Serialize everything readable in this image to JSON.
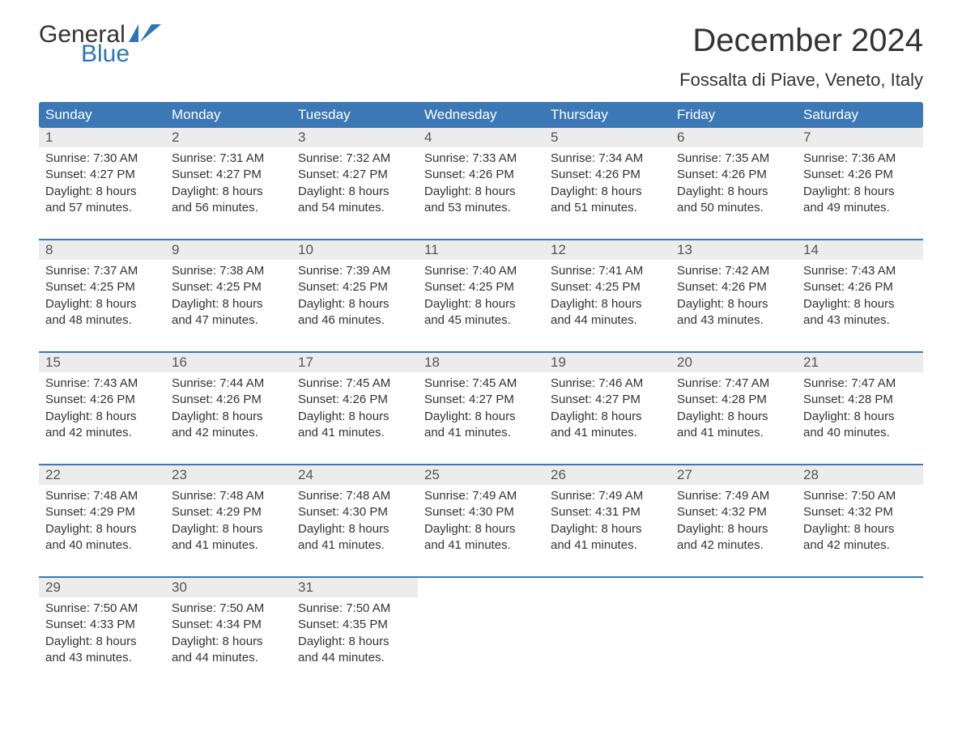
{
  "logo": {
    "word1": "General",
    "word2": "Blue"
  },
  "title": "December 2024",
  "location": "Fossalta di Piave, Veneto, Italy",
  "colors": {
    "header_bg": "#3b78b5",
    "header_text": "#ffffff",
    "daynum_bg": "#ececec",
    "accent_border": "#3b78b5",
    "body_text": "#333333",
    "logo_blue": "#2e75b6"
  },
  "day_headers": [
    "Sunday",
    "Monday",
    "Tuesday",
    "Wednesday",
    "Thursday",
    "Friday",
    "Saturday"
  ],
  "weeks": [
    [
      {
        "n": "1",
        "sr": "Sunrise: 7:30 AM",
        "ss": "Sunset: 4:27 PM",
        "d1": "Daylight: 8 hours",
        "d2": "and 57 minutes."
      },
      {
        "n": "2",
        "sr": "Sunrise: 7:31 AM",
        "ss": "Sunset: 4:27 PM",
        "d1": "Daylight: 8 hours",
        "d2": "and 56 minutes."
      },
      {
        "n": "3",
        "sr": "Sunrise: 7:32 AM",
        "ss": "Sunset: 4:27 PM",
        "d1": "Daylight: 8 hours",
        "d2": "and 54 minutes."
      },
      {
        "n": "4",
        "sr": "Sunrise: 7:33 AM",
        "ss": "Sunset: 4:26 PM",
        "d1": "Daylight: 8 hours",
        "d2": "and 53 minutes."
      },
      {
        "n": "5",
        "sr": "Sunrise: 7:34 AM",
        "ss": "Sunset: 4:26 PM",
        "d1": "Daylight: 8 hours",
        "d2": "and 51 minutes."
      },
      {
        "n": "6",
        "sr": "Sunrise: 7:35 AM",
        "ss": "Sunset: 4:26 PM",
        "d1": "Daylight: 8 hours",
        "d2": "and 50 minutes."
      },
      {
        "n": "7",
        "sr": "Sunrise: 7:36 AM",
        "ss": "Sunset: 4:26 PM",
        "d1": "Daylight: 8 hours",
        "d2": "and 49 minutes."
      }
    ],
    [
      {
        "n": "8",
        "sr": "Sunrise: 7:37 AM",
        "ss": "Sunset: 4:25 PM",
        "d1": "Daylight: 8 hours",
        "d2": "and 48 minutes."
      },
      {
        "n": "9",
        "sr": "Sunrise: 7:38 AM",
        "ss": "Sunset: 4:25 PM",
        "d1": "Daylight: 8 hours",
        "d2": "and 47 minutes."
      },
      {
        "n": "10",
        "sr": "Sunrise: 7:39 AM",
        "ss": "Sunset: 4:25 PM",
        "d1": "Daylight: 8 hours",
        "d2": "and 46 minutes."
      },
      {
        "n": "11",
        "sr": "Sunrise: 7:40 AM",
        "ss": "Sunset: 4:25 PM",
        "d1": "Daylight: 8 hours",
        "d2": "and 45 minutes."
      },
      {
        "n": "12",
        "sr": "Sunrise: 7:41 AM",
        "ss": "Sunset: 4:25 PM",
        "d1": "Daylight: 8 hours",
        "d2": "and 44 minutes."
      },
      {
        "n": "13",
        "sr": "Sunrise: 7:42 AM",
        "ss": "Sunset: 4:26 PM",
        "d1": "Daylight: 8 hours",
        "d2": "and 43 minutes."
      },
      {
        "n": "14",
        "sr": "Sunrise: 7:43 AM",
        "ss": "Sunset: 4:26 PM",
        "d1": "Daylight: 8 hours",
        "d2": "and 43 minutes."
      }
    ],
    [
      {
        "n": "15",
        "sr": "Sunrise: 7:43 AM",
        "ss": "Sunset: 4:26 PM",
        "d1": "Daylight: 8 hours",
        "d2": "and 42 minutes."
      },
      {
        "n": "16",
        "sr": "Sunrise: 7:44 AM",
        "ss": "Sunset: 4:26 PM",
        "d1": "Daylight: 8 hours",
        "d2": "and 42 minutes."
      },
      {
        "n": "17",
        "sr": "Sunrise: 7:45 AM",
        "ss": "Sunset: 4:26 PM",
        "d1": "Daylight: 8 hours",
        "d2": "and 41 minutes."
      },
      {
        "n": "18",
        "sr": "Sunrise: 7:45 AM",
        "ss": "Sunset: 4:27 PM",
        "d1": "Daylight: 8 hours",
        "d2": "and 41 minutes."
      },
      {
        "n": "19",
        "sr": "Sunrise: 7:46 AM",
        "ss": "Sunset: 4:27 PM",
        "d1": "Daylight: 8 hours",
        "d2": "and 41 minutes."
      },
      {
        "n": "20",
        "sr": "Sunrise: 7:47 AM",
        "ss": "Sunset: 4:28 PM",
        "d1": "Daylight: 8 hours",
        "d2": "and 41 minutes."
      },
      {
        "n": "21",
        "sr": "Sunrise: 7:47 AM",
        "ss": "Sunset: 4:28 PM",
        "d1": "Daylight: 8 hours",
        "d2": "and 40 minutes."
      }
    ],
    [
      {
        "n": "22",
        "sr": "Sunrise: 7:48 AM",
        "ss": "Sunset: 4:29 PM",
        "d1": "Daylight: 8 hours",
        "d2": "and 40 minutes."
      },
      {
        "n": "23",
        "sr": "Sunrise: 7:48 AM",
        "ss": "Sunset: 4:29 PM",
        "d1": "Daylight: 8 hours",
        "d2": "and 41 minutes."
      },
      {
        "n": "24",
        "sr": "Sunrise: 7:48 AM",
        "ss": "Sunset: 4:30 PM",
        "d1": "Daylight: 8 hours",
        "d2": "and 41 minutes."
      },
      {
        "n": "25",
        "sr": "Sunrise: 7:49 AM",
        "ss": "Sunset: 4:30 PM",
        "d1": "Daylight: 8 hours",
        "d2": "and 41 minutes."
      },
      {
        "n": "26",
        "sr": "Sunrise: 7:49 AM",
        "ss": "Sunset: 4:31 PM",
        "d1": "Daylight: 8 hours",
        "d2": "and 41 minutes."
      },
      {
        "n": "27",
        "sr": "Sunrise: 7:49 AM",
        "ss": "Sunset: 4:32 PM",
        "d1": "Daylight: 8 hours",
        "d2": "and 42 minutes."
      },
      {
        "n": "28",
        "sr": "Sunrise: 7:50 AM",
        "ss": "Sunset: 4:32 PM",
        "d1": "Daylight: 8 hours",
        "d2": "and 42 minutes."
      }
    ],
    [
      {
        "n": "29",
        "sr": "Sunrise: 7:50 AM",
        "ss": "Sunset: 4:33 PM",
        "d1": "Daylight: 8 hours",
        "d2": "and 43 minutes."
      },
      {
        "n": "30",
        "sr": "Sunrise: 7:50 AM",
        "ss": "Sunset: 4:34 PM",
        "d1": "Daylight: 8 hours",
        "d2": "and 44 minutes."
      },
      {
        "n": "31",
        "sr": "Sunrise: 7:50 AM",
        "ss": "Sunset: 4:35 PM",
        "d1": "Daylight: 8 hours",
        "d2": "and 44 minutes."
      },
      null,
      null,
      null,
      null
    ]
  ]
}
